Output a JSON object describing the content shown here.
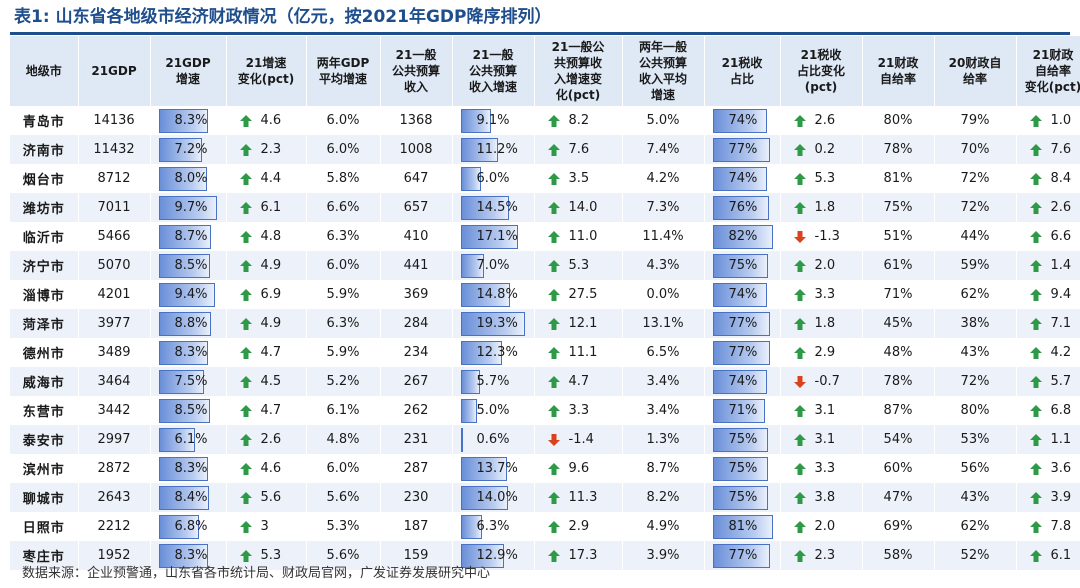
{
  "title": {
    "label": "表1:",
    "text": "山东省各地级市经济财政情况（亿元，按2021年GDP降序排列）"
  },
  "colors": {
    "up": "#2e9a47",
    "down": "#d9421c",
    "title": "#1f4e8c",
    "bar": "#6a8fd8"
  },
  "headers": [
    "地级市",
    "21GDP",
    "21GDP\n增速",
    "21增速\n变化(pct)",
    "两年GDP\n平均增速",
    "21一般\n公共预算\n收入",
    "21一般\n公共预算\n收入增速",
    "21一般公\n共预算收\n入增速变\n化(pct)",
    "两年一般\n公共预算\n收入平均\n增速",
    "21税收\n占比",
    "21税收\n占比变化\n(pct)",
    "21财政\n自给率",
    "20财政自\n给率",
    "21财政\n自给率\n变化(pct)"
  ],
  "rows": [
    {
      "city": "青岛市",
      "gdp": "14136",
      "gdp_growth": "8.3%",
      "gdp_growth_v": 8.3,
      "growth_chg": "4.6",
      "growth_chg_dir": "up",
      "two_yr_gdp": "6.0%",
      "revenue": "1368",
      "rev_growth": "9.1%",
      "rev_growth_v": 9.1,
      "rev_chg": "8.2",
      "rev_chg_dir": "up",
      "two_yr_rev": "5.0%",
      "tax_share": "74%",
      "tax_share_v": 74,
      "tax_chg": "2.6",
      "tax_chg_dir": "up",
      "self_21": "80%",
      "self_20": "79%",
      "self_chg": "1.0",
      "self_chg_dir": "up"
    },
    {
      "city": "济南市",
      "gdp": "11432",
      "gdp_growth": "7.2%",
      "gdp_growth_v": 7.2,
      "growth_chg": "2.3",
      "growth_chg_dir": "up",
      "two_yr_gdp": "6.0%",
      "revenue": "1008",
      "rev_growth": "11.2%",
      "rev_growth_v": 11.2,
      "rev_chg": "7.6",
      "rev_chg_dir": "up",
      "two_yr_rev": "7.4%",
      "tax_share": "77%",
      "tax_share_v": 77,
      "tax_chg": "0.2",
      "tax_chg_dir": "up",
      "self_21": "78%",
      "self_20": "70%",
      "self_chg": "7.6",
      "self_chg_dir": "up"
    },
    {
      "city": "烟台市",
      "gdp": "8712",
      "gdp_growth": "8.0%",
      "gdp_growth_v": 8.0,
      "growth_chg": "4.4",
      "growth_chg_dir": "up",
      "two_yr_gdp": "5.8%",
      "revenue": "647",
      "rev_growth": "6.0%",
      "rev_growth_v": 6.0,
      "rev_chg": "3.5",
      "rev_chg_dir": "up",
      "two_yr_rev": "4.2%",
      "tax_share": "74%",
      "tax_share_v": 74,
      "tax_chg": "5.3",
      "tax_chg_dir": "up",
      "self_21": "81%",
      "self_20": "72%",
      "self_chg": "8.4",
      "self_chg_dir": "up"
    },
    {
      "city": "潍坊市",
      "gdp": "7011",
      "gdp_growth": "9.7%",
      "gdp_growth_v": 9.7,
      "growth_chg": "6.1",
      "growth_chg_dir": "up",
      "two_yr_gdp": "6.6%",
      "revenue": "657",
      "rev_growth": "14.5%",
      "rev_growth_v": 14.5,
      "rev_chg": "14.0",
      "rev_chg_dir": "up",
      "two_yr_rev": "7.3%",
      "tax_share": "76%",
      "tax_share_v": 76,
      "tax_chg": "1.8",
      "tax_chg_dir": "up",
      "self_21": "75%",
      "self_20": "72%",
      "self_chg": "2.6",
      "self_chg_dir": "up"
    },
    {
      "city": "临沂市",
      "gdp": "5466",
      "gdp_growth": "8.7%",
      "gdp_growth_v": 8.7,
      "growth_chg": "4.8",
      "growth_chg_dir": "up",
      "two_yr_gdp": "6.3%",
      "revenue": "410",
      "rev_growth": "17.1%",
      "rev_growth_v": 17.1,
      "rev_chg": "11.0",
      "rev_chg_dir": "up",
      "two_yr_rev": "11.4%",
      "tax_share": "82%",
      "tax_share_v": 82,
      "tax_chg": "-1.3",
      "tax_chg_dir": "down",
      "self_21": "51%",
      "self_20": "44%",
      "self_chg": "6.6",
      "self_chg_dir": "up"
    },
    {
      "city": "济宁市",
      "gdp": "5070",
      "gdp_growth": "8.5%",
      "gdp_growth_v": 8.5,
      "growth_chg": "4.9",
      "growth_chg_dir": "up",
      "two_yr_gdp": "6.0%",
      "revenue": "441",
      "rev_growth": "7.0%",
      "rev_growth_v": 7.0,
      "rev_chg": "5.3",
      "rev_chg_dir": "up",
      "two_yr_rev": "4.3%",
      "tax_share": "75%",
      "tax_share_v": 75,
      "tax_chg": "2.0",
      "tax_chg_dir": "up",
      "self_21": "61%",
      "self_20": "59%",
      "self_chg": "1.4",
      "self_chg_dir": "up"
    },
    {
      "city": "淄博市",
      "gdp": "4201",
      "gdp_growth": "9.4%",
      "gdp_growth_v": 9.4,
      "growth_chg": "6.9",
      "growth_chg_dir": "up",
      "two_yr_gdp": "5.9%",
      "revenue": "369",
      "rev_growth": "14.8%",
      "rev_growth_v": 14.8,
      "rev_chg": "27.5",
      "rev_chg_dir": "up",
      "two_yr_rev": "0.0%",
      "tax_share": "74%",
      "tax_share_v": 74,
      "tax_chg": "3.3",
      "tax_chg_dir": "up",
      "self_21": "71%",
      "self_20": "62%",
      "self_chg": "9.4",
      "self_chg_dir": "up"
    },
    {
      "city": "菏泽市",
      "gdp": "3977",
      "gdp_growth": "8.8%",
      "gdp_growth_v": 8.8,
      "growth_chg": "4.9",
      "growth_chg_dir": "up",
      "two_yr_gdp": "6.3%",
      "revenue": "284",
      "rev_growth": "19.3%",
      "rev_growth_v": 19.3,
      "rev_chg": "12.1",
      "rev_chg_dir": "up",
      "two_yr_rev": "13.1%",
      "tax_share": "77%",
      "tax_share_v": 77,
      "tax_chg": "1.8",
      "tax_chg_dir": "up",
      "self_21": "45%",
      "self_20": "38%",
      "self_chg": "7.1",
      "self_chg_dir": "up"
    },
    {
      "city": "德州市",
      "gdp": "3489",
      "gdp_growth": "8.3%",
      "gdp_growth_v": 8.3,
      "growth_chg": "4.7",
      "growth_chg_dir": "up",
      "two_yr_gdp": "5.9%",
      "revenue": "234",
      "rev_growth": "12.3%",
      "rev_growth_v": 12.3,
      "rev_chg": "11.1",
      "rev_chg_dir": "up",
      "two_yr_rev": "6.5%",
      "tax_share": "77%",
      "tax_share_v": 77,
      "tax_chg": "2.9",
      "tax_chg_dir": "up",
      "self_21": "48%",
      "self_20": "43%",
      "self_chg": "4.2",
      "self_chg_dir": "up"
    },
    {
      "city": "威海市",
      "gdp": "3464",
      "gdp_growth": "7.5%",
      "gdp_growth_v": 7.5,
      "growth_chg": "4.5",
      "growth_chg_dir": "up",
      "two_yr_gdp": "5.2%",
      "revenue": "267",
      "rev_growth": "5.7%",
      "rev_growth_v": 5.7,
      "rev_chg": "4.7",
      "rev_chg_dir": "up",
      "two_yr_rev": "3.4%",
      "tax_share": "74%",
      "tax_share_v": 74,
      "tax_chg": "-0.7",
      "tax_chg_dir": "down",
      "self_21": "78%",
      "self_20": "72%",
      "self_chg": "5.7",
      "self_chg_dir": "up"
    },
    {
      "city": "东营市",
      "gdp": "3442",
      "gdp_growth": "8.5%",
      "gdp_growth_v": 8.5,
      "growth_chg": "4.7",
      "growth_chg_dir": "up",
      "two_yr_gdp": "6.1%",
      "revenue": "262",
      "rev_growth": "5.0%",
      "rev_growth_v": 5.0,
      "rev_chg": "3.3",
      "rev_chg_dir": "up",
      "two_yr_rev": "3.4%",
      "tax_share": "71%",
      "tax_share_v": 71,
      "tax_chg": "3.1",
      "tax_chg_dir": "up",
      "self_21": "87%",
      "self_20": "80%",
      "self_chg": "6.8",
      "self_chg_dir": "up"
    },
    {
      "city": "泰安市",
      "gdp": "2997",
      "gdp_growth": "6.1%",
      "gdp_growth_v": 6.1,
      "growth_chg": "2.6",
      "growth_chg_dir": "up",
      "two_yr_gdp": "4.8%",
      "revenue": "231",
      "rev_growth": "0.6%",
      "rev_growth_v": 0.6,
      "rev_chg": "-1.4",
      "rev_chg_dir": "down",
      "two_yr_rev": "1.3%",
      "tax_share": "75%",
      "tax_share_v": 75,
      "tax_chg": "3.1",
      "tax_chg_dir": "up",
      "self_21": "54%",
      "self_20": "53%",
      "self_chg": "1.1",
      "self_chg_dir": "up"
    },
    {
      "city": "滨州市",
      "gdp": "2872",
      "gdp_growth": "8.3%",
      "gdp_growth_v": 8.3,
      "growth_chg": "4.6",
      "growth_chg_dir": "up",
      "two_yr_gdp": "6.0%",
      "revenue": "287",
      "rev_growth": "13.7%",
      "rev_growth_v": 13.7,
      "rev_chg": "9.6",
      "rev_chg_dir": "up",
      "two_yr_rev": "8.7%",
      "tax_share": "75%",
      "tax_share_v": 75,
      "tax_chg": "3.3",
      "tax_chg_dir": "up",
      "self_21": "60%",
      "self_20": "56%",
      "self_chg": "3.6",
      "self_chg_dir": "up"
    },
    {
      "city": "聊城市",
      "gdp": "2643",
      "gdp_growth": "8.4%",
      "gdp_growth_v": 8.4,
      "growth_chg": "5.6",
      "growth_chg_dir": "up",
      "two_yr_gdp": "5.6%",
      "revenue": "230",
      "rev_growth": "14.0%",
      "rev_growth_v": 14.0,
      "rev_chg": "11.3",
      "rev_chg_dir": "up",
      "two_yr_rev": "8.2%",
      "tax_share": "75%",
      "tax_share_v": 75,
      "tax_chg": "3.8",
      "tax_chg_dir": "up",
      "self_21": "47%",
      "self_20": "43%",
      "self_chg": "3.9",
      "self_chg_dir": "up"
    },
    {
      "city": "日照市",
      "gdp": "2212",
      "gdp_growth": "6.8%",
      "gdp_growth_v": 6.8,
      "growth_chg": "3",
      "growth_chg_dir": "up",
      "two_yr_gdp": "5.3%",
      "revenue": "187",
      "rev_growth": "6.3%",
      "rev_growth_v": 6.3,
      "rev_chg": "2.9",
      "rev_chg_dir": "up",
      "two_yr_rev": "4.9%",
      "tax_share": "81%",
      "tax_share_v": 81,
      "tax_chg": "2.0",
      "tax_chg_dir": "up",
      "self_21": "69%",
      "self_20": "62%",
      "self_chg": "7.8",
      "self_chg_dir": "up"
    },
    {
      "city": "枣庄市",
      "gdp": "1952",
      "gdp_growth": "8.3%",
      "gdp_growth_v": 8.3,
      "growth_chg": "5.3",
      "growth_chg_dir": "up",
      "two_yr_gdp": "5.6%",
      "revenue": "159",
      "rev_growth": "12.9%",
      "rev_growth_v": 12.9,
      "rev_chg": "17.3",
      "rev_chg_dir": "up",
      "two_yr_rev": "3.9%",
      "tax_share": "77%",
      "tax_share_v": 77,
      "tax_chg": "2.3",
      "tax_chg_dir": "up",
      "self_21": "58%",
      "self_20": "52%",
      "self_chg": "6.1",
      "self_chg_dir": "up"
    }
  ],
  "source": "数据来源：企业预警通，山东省各市统计局、财政局官网，广发证券发展研究中心"
}
